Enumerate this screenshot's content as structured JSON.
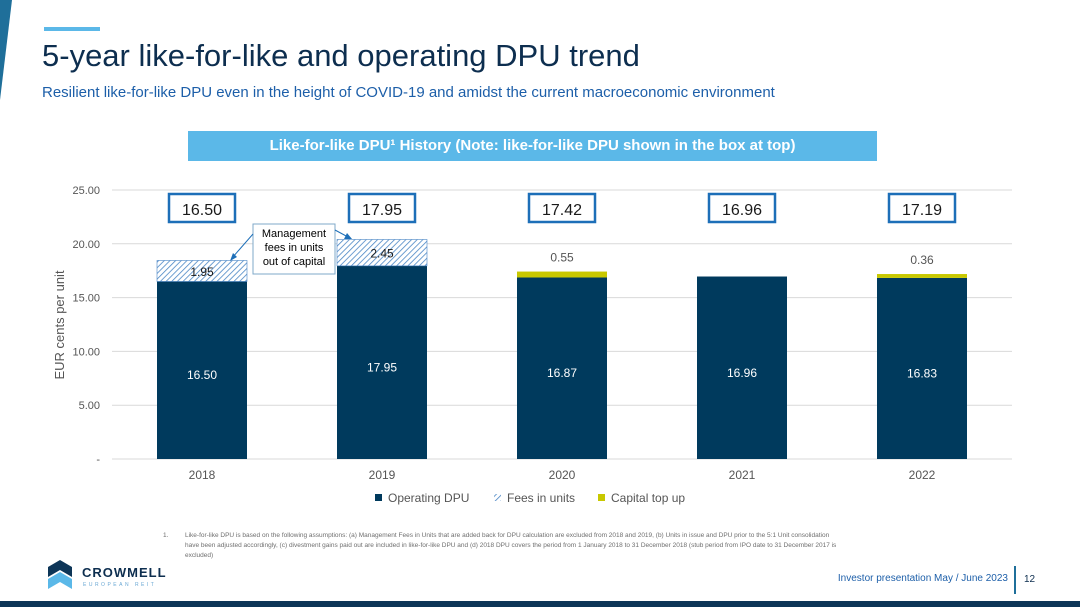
{
  "header": {
    "title": "5-year like-for-like and operating DPU trend",
    "subtitle": "Resilient like-for-like DPU even in the height of COVID-19 and amidst the current macroeconomic environment",
    "banner": "Like-for-like DPU¹ History (Note: like-for-like DPU shown in the box at top)"
  },
  "colors": {
    "accent": "#5bb8e8",
    "operating": "#003a5d",
    "fees": "#4a86c5",
    "capital": "#c8c800",
    "box_border": "#1d6fb8"
  },
  "chart_data": {
    "type": "bar",
    "stacked": true,
    "categories": [
      "2018",
      "2019",
      "2020",
      "2021",
      "2022"
    ],
    "series": [
      {
        "name": "Operating DPU",
        "values": [
          16.5,
          17.95,
          16.87,
          16.96,
          16.83
        ],
        "labels": [
          "16.50",
          "17.95",
          "16.87",
          "16.96",
          "16.83"
        ]
      },
      {
        "name": "Fees in units",
        "values": [
          1.95,
          2.45,
          0,
          0,
          0
        ],
        "labels": [
          "1.95",
          "2.45",
          "",
          "",
          ""
        ]
      },
      {
        "name": "Capital top up",
        "values": [
          0,
          0,
          0.55,
          0,
          0.36
        ],
        "labels": [
          "",
          "",
          "0.55",
          "",
          "0.36"
        ]
      }
    ],
    "box_labels": [
      "16.50",
      "17.95",
      "17.42",
      "16.96",
      "17.19"
    ],
    "ylabel": "EUR cents per unit",
    "ylim": [
      0,
      25
    ],
    "yticks": [
      "-",
      "5.00",
      "10.00",
      "15.00",
      "20.00",
      "25.00"
    ],
    "grid": true,
    "legend": "bottom",
    "annotation": {
      "lines": [
        "Management",
        "fees in units",
        "out of capital"
      ]
    }
  },
  "footnote": {
    "number": "1.",
    "text": "Like-for-like DPU is based on the following assumptions: (a) Management Fees in Units that are added back for DPU calculation are excluded from 2018 and 2019, (b) Units in issue and DPU prior to the 5:1 Unit consolidation have been adjusted accordingly, (c) divestment gains paid out are included in like-for-like DPU and (d) 2018 DPU covers the period from 1 January 2018 to 31 December 2018 (stub period from IPO date to 31 December 2017 is excluded)"
  },
  "logo": {
    "name": "CROWMELL",
    "tagline": "EUROPEAN REIT"
  },
  "footer": {
    "label": "Investor presentation May / June 2023",
    "page": "12"
  }
}
